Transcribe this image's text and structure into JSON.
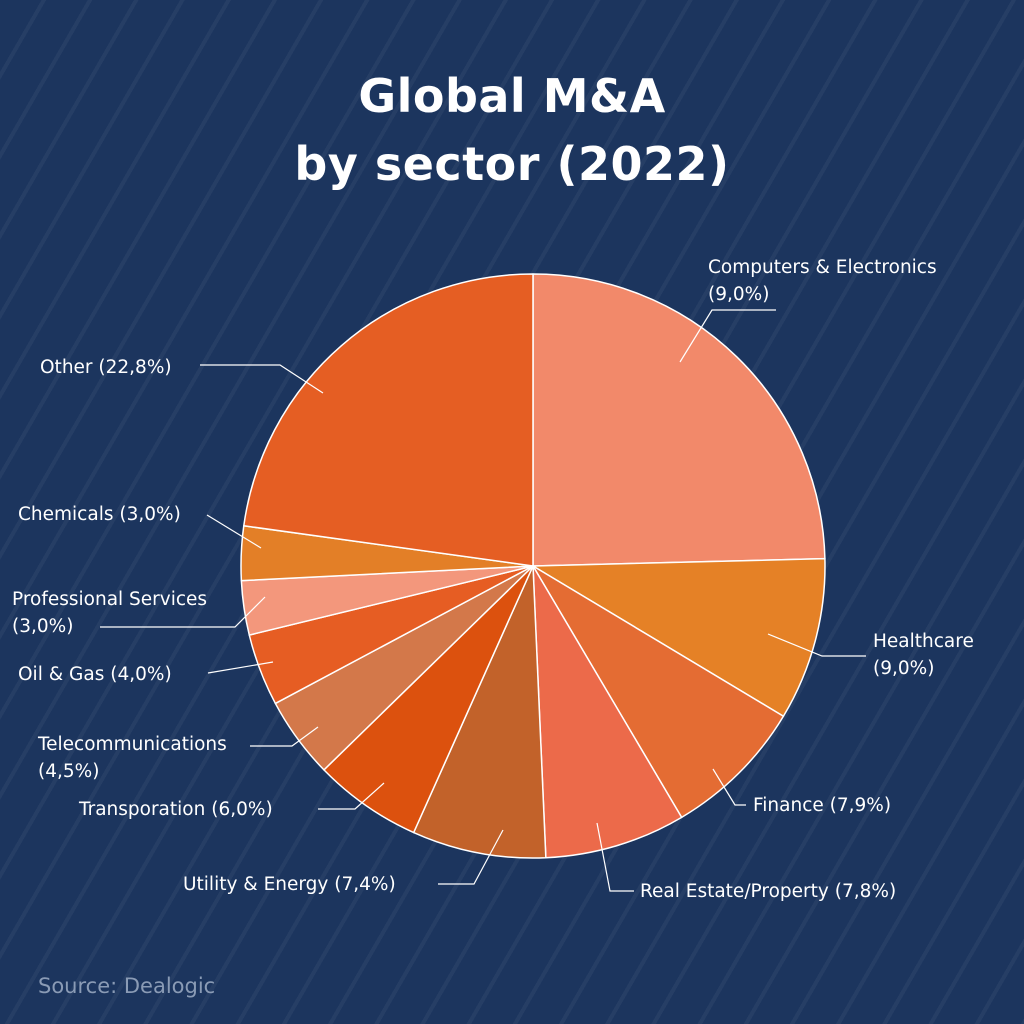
{
  "chart_data": {
    "type": "pie",
    "title": [
      "Global M&A",
      "by sector (2022)"
    ],
    "source": "Source: Dealogic",
    "unit": "%",
    "slices": [
      {
        "label": "Computers & Electronics",
        "value": 9.0,
        "display": "(9,0%)",
        "color": "#f2896a"
      },
      {
        "label": "Healthcare",
        "value": 9.0,
        "display": "(9,0%)",
        "color": "#e58126"
      },
      {
        "label": "Finance",
        "value": 7.9,
        "display": "(7,9%)",
        "color": "#e46c33"
      },
      {
        "label": "Real Estate/Property",
        "value": 7.8,
        "display": "(7,8%)",
        "color": "#ec6a4a"
      },
      {
        "label": "Utility & Energy",
        "value": 7.4,
        "display": "(7,4%)",
        "color": "#c2622a"
      },
      {
        "label": "Transporation",
        "value": 6.0,
        "display": "(6,0%)",
        "color": "#dc510e"
      },
      {
        "label": "Telecommunications",
        "value": 4.5,
        "display": "(4,5%)",
        "color": "#d3784a"
      },
      {
        "label": "Oil & Gas",
        "value": 4.0,
        "display": "(4,0%)",
        "color": "#e65d23"
      },
      {
        "label": "Professional Services",
        "value": 3.0,
        "display": "(3,0%)",
        "color": "#f3977c"
      },
      {
        "label": "Chemicals",
        "value": 3.0,
        "display": "(3,0%)",
        "color": "#e37f27"
      },
      {
        "label": "Other",
        "value": 22.8,
        "display": "(22,8%)",
        "color": "#e55e23"
      }
    ]
  }
}
